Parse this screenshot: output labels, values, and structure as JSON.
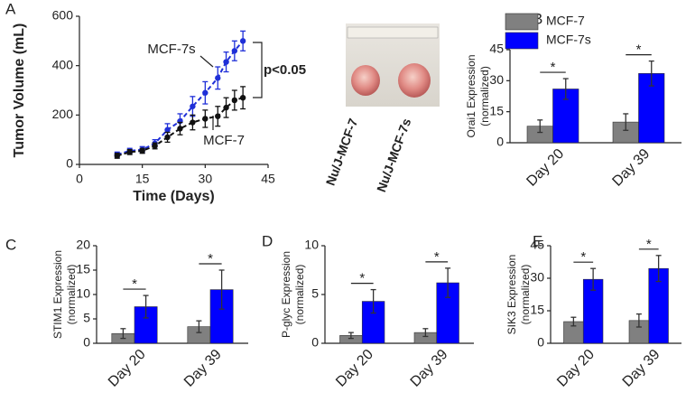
{
  "photo": {
    "labels": [
      "Nu/J-MCF-7",
      "Nu/J-MCF-7s"
    ]
  },
  "chart_data": [
    {
      "type": "line",
      "panel": "A",
      "xlabel": "Time (Days)",
      "ylabel": "Tumor Volume (mL)",
      "x": [
        9,
        12,
        15,
        18,
        21,
        24,
        27,
        30,
        33,
        35,
        37,
        39
      ],
      "xlim": [
        0,
        45
      ],
      "xticks": [
        0,
        15,
        30,
        45
      ],
      "ylim": [
        0,
        600
      ],
      "yticks": [
        0,
        200,
        400,
        600
      ],
      "series": [
        {
          "name": "MCF-7s",
          "color": "#1f2fd8",
          "values": [
            40,
            55,
            60,
            85,
            140,
            175,
            235,
            290,
            350,
            415,
            460,
            500
          ],
          "errors": [
            10,
            10,
            12,
            15,
            25,
            30,
            40,
            45,
            45,
            40,
            40,
            40
          ]
        },
        {
          "name": "MCF-7",
          "color": "#111111",
          "values": [
            35,
            50,
            55,
            75,
            110,
            145,
            170,
            185,
            195,
            230,
            260,
            270
          ],
          "errors": [
            10,
            10,
            10,
            12,
            20,
            25,
            30,
            35,
            40,
            40,
            40,
            45
          ]
        }
      ],
      "annotations": [
        "p<0.05"
      ]
    },
    {
      "type": "bar",
      "panel": "B",
      "ylabel": [
        "Orai1 Expression",
        "(normalized)"
      ],
      "categories": [
        "Day 20",
        "Day 39"
      ],
      "ylim": [
        0,
        45
      ],
      "yticks": [
        0,
        15,
        30,
        45
      ],
      "legend": true,
      "series": [
        {
          "name": "MCF-7",
          "color": "#808080",
          "values": [
            8,
            10
          ],
          "errors": [
            3,
            4
          ]
        },
        {
          "name": "MCF-7s",
          "color": "#0000ff",
          "values": [
            26,
            33.5
          ],
          "errors": [
            5,
            6
          ]
        }
      ],
      "significance": [
        "*",
        "*"
      ]
    },
    {
      "type": "bar",
      "panel": "C",
      "ylabel": [
        "STIM1 Expression",
        "(normalized)"
      ],
      "categories": [
        "Day 20",
        "Day 39"
      ],
      "ylim": [
        0,
        20
      ],
      "yticks": [
        0,
        5,
        10,
        15,
        20
      ],
      "legend": false,
      "series": [
        {
          "name": "MCF-7",
          "color": "#808080",
          "values": [
            2,
            3.4
          ],
          "errors": [
            1,
            1.2
          ]
        },
        {
          "name": "MCF-7s",
          "color": "#0000ff",
          "values": [
            7.5,
            11
          ],
          "errors": [
            2.3,
            4
          ]
        }
      ],
      "significance": [
        "*",
        "*"
      ]
    },
    {
      "type": "bar",
      "panel": "D",
      "ylabel": [
        "P-glyc Expression",
        "(normalized)"
      ],
      "categories": [
        "Day 20",
        "Day 39"
      ],
      "ylim": [
        0,
        10
      ],
      "yticks": [
        0,
        5,
        10
      ],
      "legend": false,
      "series": [
        {
          "name": "MCF-7",
          "color": "#808080",
          "values": [
            0.8,
            1.1
          ],
          "errors": [
            0.3,
            0.4
          ]
        },
        {
          "name": "MCF-7s",
          "color": "#0000ff",
          "values": [
            4.3,
            6.2
          ],
          "errors": [
            1.2,
            1.5
          ]
        }
      ],
      "significance": [
        "*",
        "*"
      ]
    },
    {
      "type": "bar",
      "panel": "E",
      "ylabel": [
        "SIK3 Expression",
        "(normalized)"
      ],
      "categories": [
        "Day 20",
        "Day 39"
      ],
      "ylim": [
        0,
        45
      ],
      "yticks": [
        0,
        15,
        30,
        45
      ],
      "legend": false,
      "series": [
        {
          "name": "MCF-7",
          "color": "#808080",
          "values": [
            10,
            10.5
          ],
          "errors": [
            2,
            3
          ]
        },
        {
          "name": "MCF-7s",
          "color": "#0000ff",
          "values": [
            29.5,
            34.5
          ],
          "errors": [
            5,
            6
          ]
        }
      ],
      "significance": [
        "*",
        "*"
      ]
    }
  ]
}
